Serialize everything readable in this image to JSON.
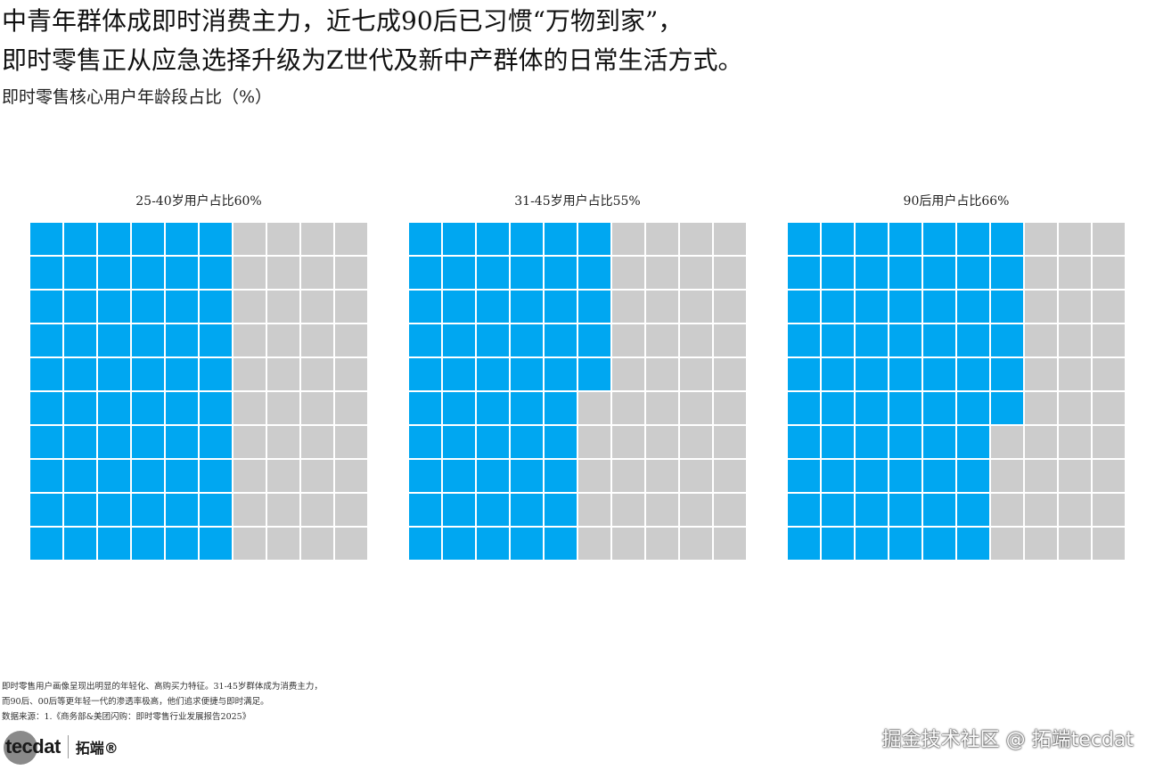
{
  "headline": {
    "line1": "中青年群体成即时消费主力，近七成90后已习惯“万物到家”，",
    "line2": "即时零售正从应急选择升级为Z世代及新中产群体的日常生活方式。"
  },
  "subtitle": "即时零售核心用户年龄段占比（%）",
  "chart_data": [
    {
      "type": "waffle",
      "title": "25-40岁用户占比60%",
      "value": 60,
      "total": 100,
      "rows": 10,
      "cols": 10
    },
    {
      "type": "waffle",
      "title": "31-45岁用户占比55%",
      "value": 55,
      "total": 100,
      "rows": 10,
      "cols": 10
    },
    {
      "type": "waffle",
      "title": "90后用户占比66%",
      "value": 66,
      "total": 100,
      "rows": 10,
      "cols": 10
    }
  ],
  "colors": {
    "filled": "#00a7f1",
    "empty": "#cccccc"
  },
  "footnote": {
    "line1": "即时零售用户画像呈现出明显的年轻化、高购买力特征。31-45岁群体成为消费主力，",
    "line2": "而90后、00后等更年轻一代的渗透率极高，他们追求便捷与即时满足。",
    "line3": "数据来源：1.《商务部&美团闪购：即时零售行业发展报告2025》"
  },
  "logo": {
    "text": "tecdat",
    "cn": "拓端®"
  },
  "watermark": "掘金技术社区 @ 拓端tecdat"
}
